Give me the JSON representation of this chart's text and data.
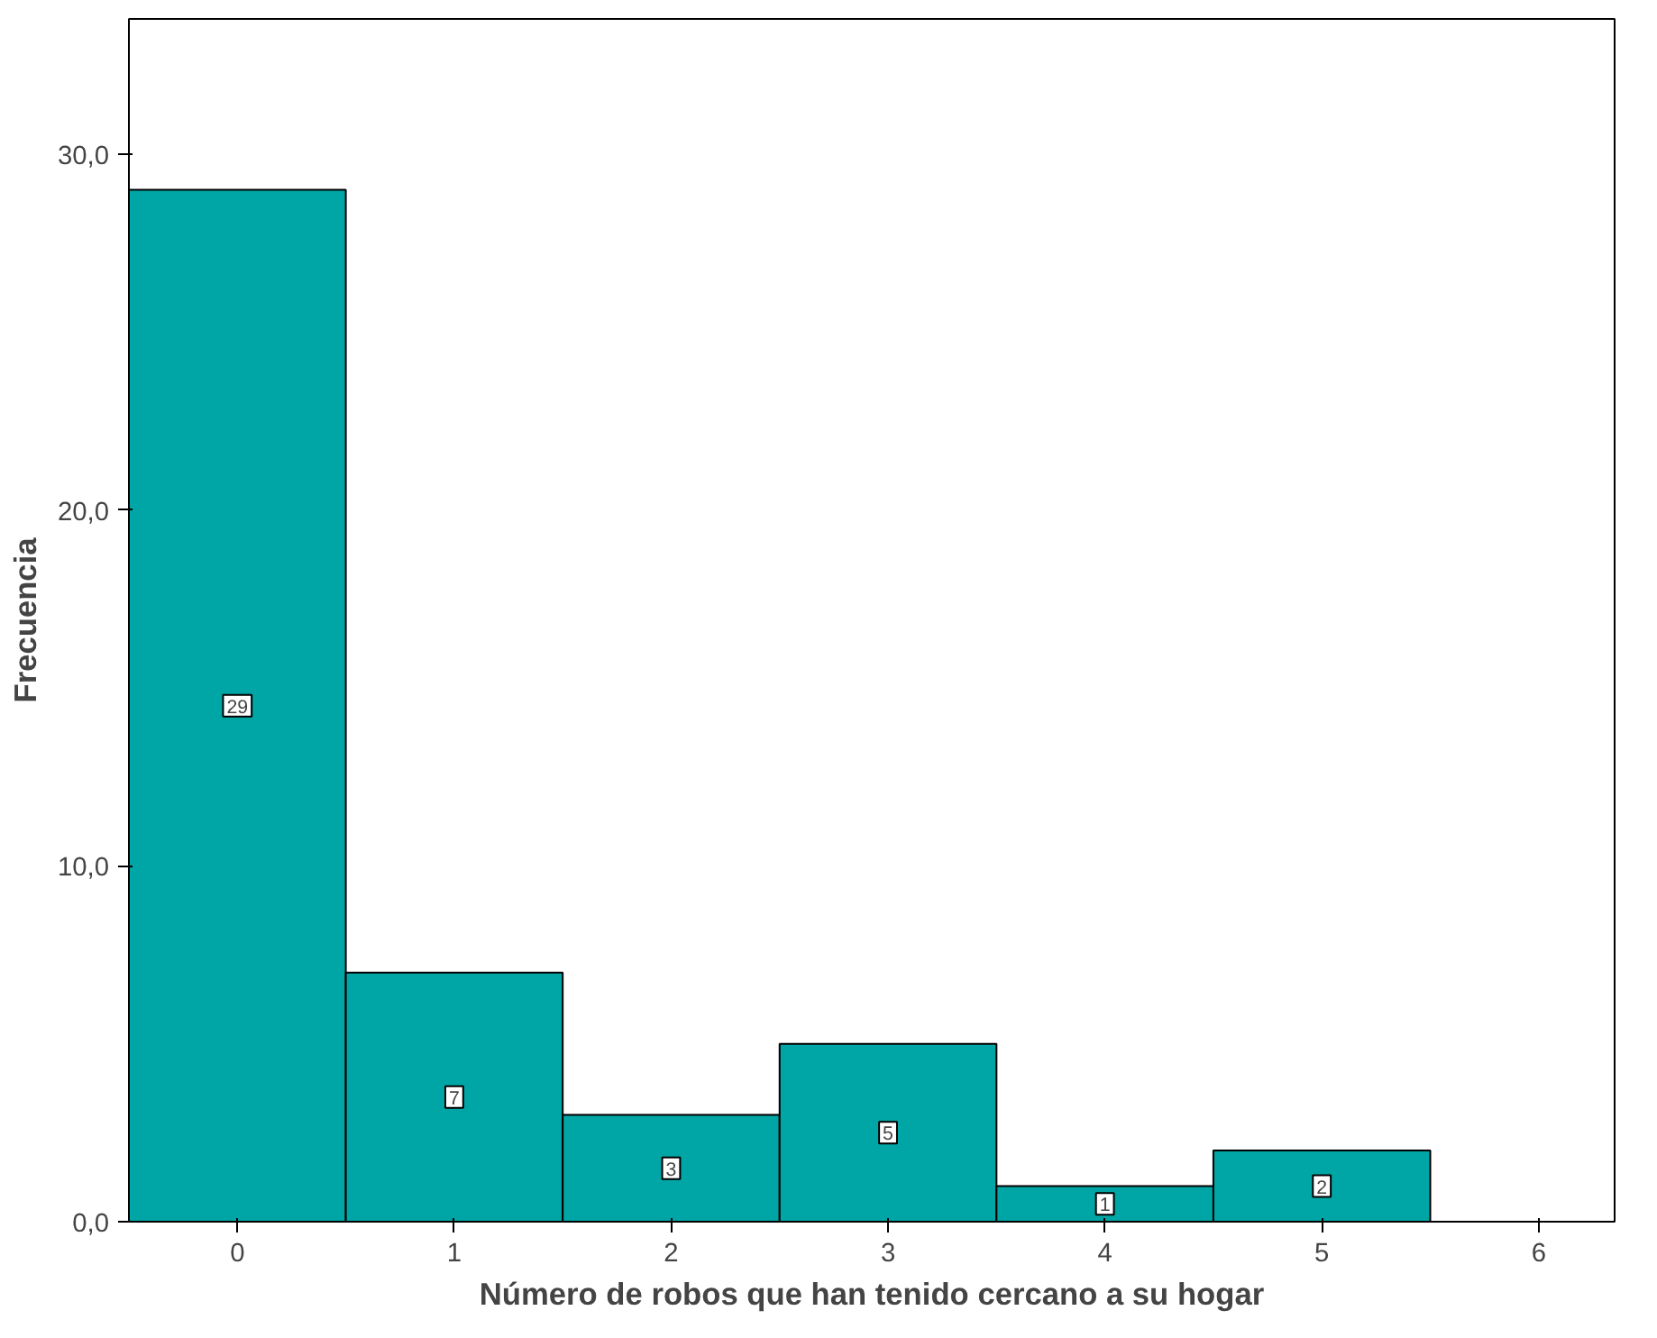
{
  "chart_data": {
    "type": "histogram",
    "xlabel": "Número de robos que han tenido cercano a su hogar",
    "ylabel": "Frecuencia",
    "bins": [
      -0.5,
      0.5,
      1.5,
      2.5,
      3.5,
      4.5,
      5.5
    ],
    "values": [
      29,
      7,
      3,
      5,
      1,
      2
    ],
    "color": "#00a5a5",
    "data_labels": true,
    "xlim": [
      -0.5,
      6.35
    ],
    "xticks": [
      0,
      1,
      2,
      3,
      4,
      5,
      6
    ],
    "ylim": [
      0,
      33.8
    ],
    "yticks": [
      {
        "value": 0,
        "label": "0,0"
      },
      {
        "value": 10,
        "label": "10,0"
      },
      {
        "value": 20,
        "label": "20,0"
      },
      {
        "value": 30,
        "label": "30,0"
      }
    ],
    "grid": false
  }
}
